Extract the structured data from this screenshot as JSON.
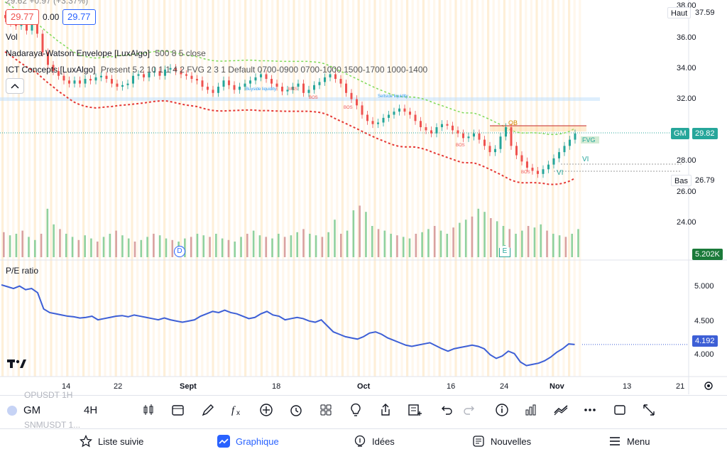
{
  "header": {
    "ohlc_clipped": "29.62 +0.97 (+3.37%)",
    "bid": "29.77",
    "spread": "0.00",
    "ask": "29.77"
  },
  "indicators": {
    "vol": "Vol",
    "nw": "Nadaraya-Watson Envelope [LuxAlgo]",
    "nw_params": "500 8 5 close",
    "ict": "ICT Concepts [LuxAlgo]",
    "ict_params": "Present 5 2 10 1 1 4 2 FVG 2 3 1 Default 0700-0900 0700-1000 1500-1700 1000-1400"
  },
  "price_axis": {
    "ticks": [
      "38.00",
      "36.00",
      "34.00",
      "32.00",
      "28.00",
      "26.00",
      "24.00"
    ],
    "high_label": "Haut",
    "high_value": "37.59",
    "symbol_tag": "GM",
    "last_price": "29.82",
    "low_label": "Bas",
    "low_value": "26.79",
    "volume_tag": "5.202K"
  },
  "pe_pane": {
    "title": "P/E ratio",
    "ticks": [
      "5.000",
      "4.500",
      "4.000"
    ],
    "current": "4.192"
  },
  "time_axis": [
    "14",
    "22",
    "Sept",
    "18",
    "Oct",
    "16",
    "24",
    "Nov",
    "13",
    "21"
  ],
  "chart_labels": {
    "ob": "OB",
    "bos": "BOS",
    "mss": "MSS",
    "fvg": "FVG",
    "vi": "VI",
    "buyside": "Buyside liquidity",
    "sellside": "Sellside liquidity",
    "dividend_marker": "D",
    "earnings_marker": "E"
  },
  "toolbar": {
    "symbol": "GM",
    "interval": "4H",
    "watch_ghost_1": "OPUSDT 1H",
    "watch_ghost_2": "SNMUSDT 1..."
  },
  "tabs": [
    {
      "label": "Liste suivie",
      "icon": "star-icon"
    },
    {
      "label": "Graphique",
      "icon": "chart-icon"
    },
    {
      "label": "Idées",
      "icon": "bulb-icon"
    },
    {
      "label": "Nouvelles",
      "icon": "news-icon"
    },
    {
      "label": "Menu",
      "icon": "menu-icon"
    }
  ],
  "colors": {
    "up": "#26a69a",
    "down": "#ef5350",
    "accent": "#2962ff",
    "pe_line": "#3d5fd6",
    "envelope_upper": "#7ed957",
    "envelope_lower": "#e53935"
  },
  "chart_data": {
    "type": "line",
    "price_range": [
      24,
      38
    ],
    "pe_range": [
      3.8,
      5.25
    ],
    "close_series": [
      37.2,
      36.9,
      36.7,
      37.0,
      36.4,
      36.8,
      36.2,
      35.0,
      34.2,
      33.8,
      33.5,
      33.2,
      33.0,
      33.2,
      33.0,
      33.3,
      33.2,
      33.4,
      33.5,
      33.3,
      33.0,
      32.8,
      32.9,
      33.0,
      33.5,
      33.6,
      33.4,
      33.7,
      33.8,
      33.5,
      33.9,
      34.0,
      33.8,
      33.6,
      33.5,
      33.3,
      33.2,
      32.8,
      32.6,
      32.4,
      32.8,
      33.2,
      32.9,
      32.6,
      32.8,
      33.0,
      33.2,
      33.4,
      33.6,
      33.3,
      33.0,
      32.8,
      32.5,
      32.6,
      32.8,
      33.0,
      32.4,
      32.6,
      32.9,
      33.1,
      33.4,
      33.6,
      33.3,
      33.0,
      32.4,
      32.0,
      31.6,
      31.0,
      30.6,
      30.4,
      30.5,
      30.8,
      31.0,
      31.2,
      31.4,
      31.2,
      31.0,
      30.6,
      30.2,
      30.0,
      29.8,
      30.2,
      30.4,
      30.3,
      30.0,
      29.8,
      29.5,
      29.6,
      29.8,
      29.4,
      29.0,
      28.6,
      28.8,
      29.6,
      30.2,
      29.0,
      28.4,
      28.0,
      27.6,
      27.4,
      27.2,
      27.5,
      27.8,
      28.2,
      28.6,
      29.0,
      29.4,
      29.8
    ],
    "pe_series": [
      5.18,
      5.15,
      5.12,
      5.16,
      5.1,
      5.12,
      5.05,
      4.78,
      4.72,
      4.7,
      4.68,
      4.66,
      4.65,
      4.63,
      4.64,
      4.66,
      4.6,
      4.62,
      4.64,
      4.66,
      4.67,
      4.65,
      4.68,
      4.66,
      4.64,
      4.62,
      4.6,
      4.63,
      4.6,
      4.58,
      4.56,
      4.58,
      4.6,
      4.66,
      4.7,
      4.74,
      4.72,
      4.76,
      4.72,
      4.7,
      4.66,
      4.62,
      4.64,
      4.7,
      4.74,
      4.68,
      4.66,
      4.6,
      4.62,
      4.64,
      4.62,
      4.58,
      4.56,
      4.6,
      4.5,
      4.4,
      4.36,
      4.32,
      4.3,
      4.28,
      4.32,
      4.38,
      4.4,
      4.36,
      4.3,
      4.26,
      4.22,
      4.18,
      4.16,
      4.18,
      4.2,
      4.22,
      4.17,
      4.12,
      4.08,
      4.12,
      4.14,
      4.16,
      4.18,
      4.16,
      4.12,
      4.02,
      3.96,
      4.0,
      4.08,
      4.04,
      3.9,
      3.84,
      3.86,
      3.88,
      3.92,
      3.98,
      4.06,
      4.12,
      4.2,
      4.19
    ],
    "volume_series": [
      32,
      28,
      30,
      34,
      26,
      22,
      30,
      62,
      42,
      36,
      30,
      26,
      22,
      28,
      24,
      20,
      26,
      30,
      34,
      28,
      24,
      20,
      22,
      26,
      30,
      28,
      24,
      22,
      20,
      24,
      26,
      30,
      28,
      26,
      30,
      24,
      22,
      20,
      26,
      30,
      34,
      28,
      26,
      24,
      30,
      26,
      28,
      32,
      36,
      30,
      28,
      26,
      32,
      48,
      30,
      34,
      60,
      66,
      58,
      40,
      36,
      34,
      30,
      28,
      26,
      24,
      30,
      32,
      36,
      40,
      34,
      30,
      38,
      44,
      48,
      52,
      62,
      58,
      50,
      46,
      40,
      36,
      30,
      34,
      40,
      38,
      42,
      34,
      30,
      28,
      26,
      30,
      36
    ]
  }
}
